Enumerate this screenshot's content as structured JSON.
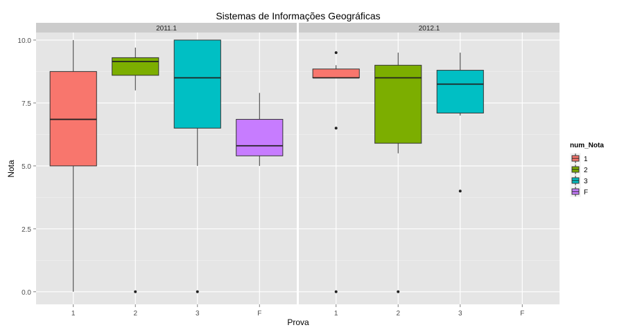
{
  "chart_data": {
    "type": "boxplot",
    "title": "Sistemas de Informações Geográficas",
    "xlabel": "Prova",
    "ylabel": "Nota",
    "ylim": [
      -0.5,
      10.3
    ],
    "yticks": [
      0.0,
      2.5,
      5.0,
      7.5,
      10.0
    ],
    "ytick_labels": [
      "0.0",
      "2.5",
      "5.0",
      "7.5",
      "10.0"
    ],
    "categories": [
      "1",
      "2",
      "3",
      "F"
    ],
    "grid": true,
    "legend": {
      "title": "num_Nota",
      "position": "right",
      "entries": [
        {
          "label": "1",
          "color": "#F8766D"
        },
        {
          "label": "2",
          "color": "#7CAE00"
        },
        {
          "label": "3",
          "color": "#00BFC4"
        },
        {
          "label": "F",
          "color": "#C77CFF"
        }
      ]
    },
    "panels": [
      {
        "label": "2011.1",
        "boxes": [
          {
            "category": "1",
            "q1": 5.0,
            "median": 6.85,
            "q3": 8.75,
            "whisker_low": 0.0,
            "whisker_high": 10.0,
            "outliers": []
          },
          {
            "category": "2",
            "q1": 8.6,
            "median": 9.15,
            "q3": 9.3,
            "whisker_low": 8.0,
            "whisker_high": 9.7,
            "outliers": [
              0.0
            ]
          },
          {
            "category": "3",
            "q1": 6.5,
            "median": 8.5,
            "q3": 10.0,
            "whisker_low": 5.0,
            "whisker_high": 10.0,
            "outliers": [
              0.0
            ]
          },
          {
            "category": "F",
            "q1": 5.4,
            "median": 5.8,
            "q3": 6.85,
            "whisker_low": 5.0,
            "whisker_high": 7.9,
            "outliers": []
          }
        ]
      },
      {
        "label": "2012.1",
        "boxes": [
          {
            "category": "1",
            "q1": 8.5,
            "median": 8.5,
            "q3": 8.85,
            "whisker_low": 8.5,
            "whisker_high": 9.0,
            "outliers": [
              9.5,
              6.5,
              0.0
            ]
          },
          {
            "category": "2",
            "q1": 5.9,
            "median": 8.5,
            "q3": 9.0,
            "whisker_low": 5.5,
            "whisker_high": 9.5,
            "outliers": [
              0.0
            ]
          },
          {
            "category": "3",
            "q1": 7.1,
            "median": 8.25,
            "q3": 8.8,
            "whisker_low": 7.0,
            "whisker_high": 9.5,
            "outliers": [
              4.0
            ]
          }
        ]
      }
    ]
  }
}
